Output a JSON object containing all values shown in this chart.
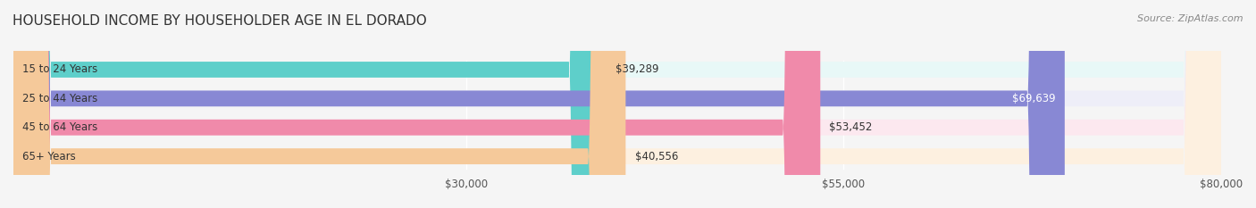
{
  "title": "HOUSEHOLD INCOME BY HOUSEHOLDER AGE IN EL DORADO",
  "source": "Source: ZipAtlas.com",
  "categories": [
    "15 to 24 Years",
    "25 to 44 Years",
    "45 to 64 Years",
    "65+ Years"
  ],
  "values": [
    39289,
    69639,
    53452,
    40556
  ],
  "bar_colors": [
    "#5ecfca",
    "#8888d4",
    "#f08aaa",
    "#f5c99a"
  ],
  "bg_colors": [
    "#e8f8f7",
    "#eeeef8",
    "#fce8ef",
    "#fdf0e0"
  ],
  "xmin": 0,
  "xmax": 80000,
  "xticks": [
    30000,
    55000,
    80000
  ],
  "xlabels": [
    "$30,000",
    "$55,000",
    "$80,000"
  ],
  "bar_height": 0.55,
  "title_fontsize": 11,
  "label_fontsize": 8.5,
  "value_fontsize": 8.5,
  "source_fontsize": 8
}
